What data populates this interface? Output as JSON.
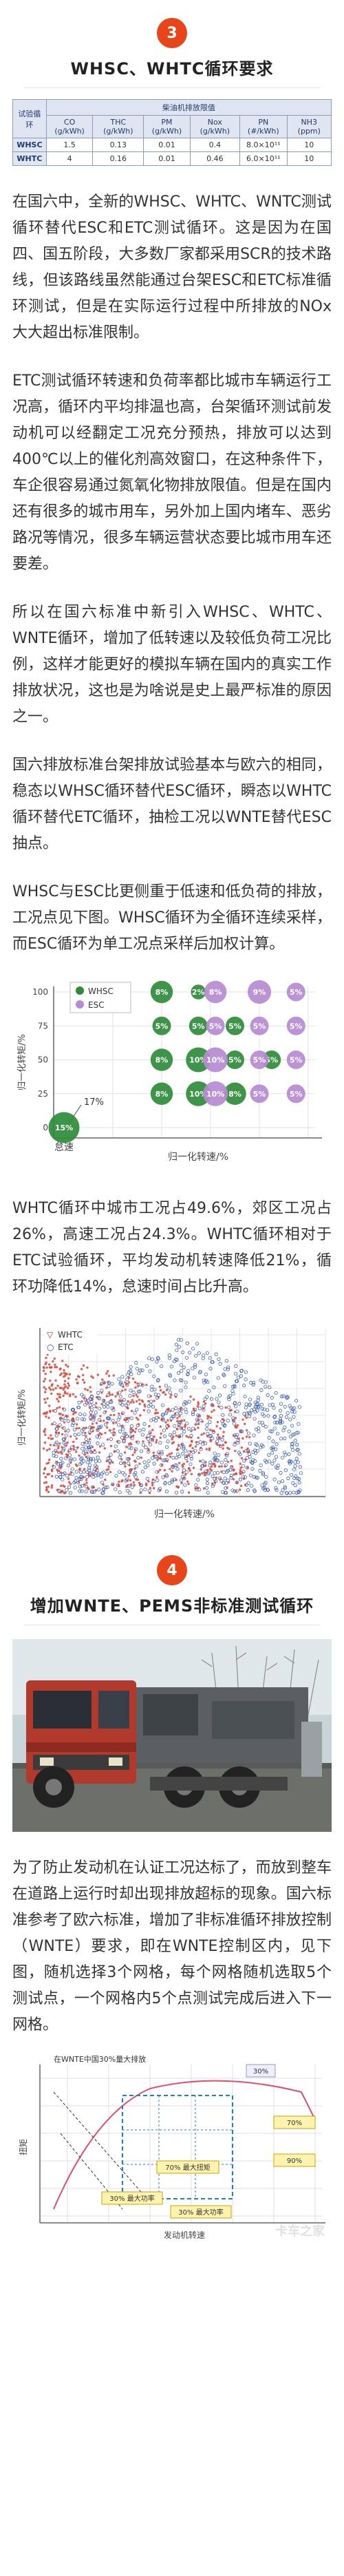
{
  "section3": {
    "number": "3",
    "title": "WHSC、WHTC循环要求"
  },
  "limits_table": {
    "header_main": "柴油机排放限值",
    "col_cycle": "试验循环",
    "columns": [
      "CO (g/kWh)",
      "THC (g/kWh)",
      "PM (g/kWh)",
      "Nox (g/kWh)",
      "PN (#/kWh)",
      "NH3 (ppm)"
    ],
    "rows": [
      {
        "cycle": "WHSC",
        "values": [
          "1.5",
          "0.13",
          "0.01",
          "0.4",
          "8.0×10¹¹",
          "10"
        ]
      },
      {
        "cycle": "WHTC",
        "values": [
          "4",
          "0.16",
          "0.01",
          "0.46",
          "6.0×10¹¹",
          "10"
        ]
      }
    ]
  },
  "para1": "在国六中，全新的WHSC、WHTC、WNTC测试循环替代ESC和ETC测试循环。这是因为在国四、国五阶段，大多数厂家都采用SCR的技术路线，但该路线虽然能通过台架ESC和ETC标准循环测试，但是在实际运行过程中所排放的NOx大大超出标准限制。",
  "para2": "ETC测试循环转速和负荷率都比城市车辆运行工况高，循环内平均排温也高，台架循环测试前发动机可以经翻定工况充分预热，排放可以达到400℃以上的催化剂高效窗口，在这种条件下，车企很容易通过氮氧化物排放限值。但是在国内还有很多的城市用车，另外加上国内堵车、恶劣路况等情况，很多车辆运营状态要比城市用车还要差。",
  "para3": "所以在国六标准中新引入WHSC、WHTC、WNTE循环，增加了低转速以及较低负荷工况比例，这样才能更好的模拟车辆在国内的真实工作排放状况，这也是为啥说是史上最严标准的原因之一。",
  "para4": "国六排放标准台架排放试验基本与欧六的相同，稳态以WHSC循环替代ESC循环，瞬态以WHTC循环替代ETC循环，抽检工况以WNTE替代ESC抽点。",
  "para5": "WHSC与ESC比更侧重于低速和低负荷的排放，工况点见下图。WHSC循环为全循环连续采样，而ESC循环为单工况点采样后加权计算。",
  "chart1": {
    "legend": [
      "WHSC",
      "ESC"
    ],
    "ylabel": "归一化转矩/%",
    "xlabel": "归一化转速/%",
    "idle_label": "怠速",
    "yticks": [
      "0",
      "25",
      "50",
      "75",
      "100"
    ],
    "annot": "17%"
  },
  "chart_data": {
    "type": "scatter",
    "title": "",
    "xlabel": "归一化转速/%",
    "ylabel": "归一化转矩/%",
    "ylim": [
      0,
      100
    ],
    "series": [
      {
        "name": "WHSC",
        "points": [
          {
            "x": 0,
            "y": 0,
            "label": "15%"
          },
          {
            "x": 40,
            "y": 100,
            "label": "8%"
          },
          {
            "x": 40,
            "y": 75,
            "label": "5%"
          },
          {
            "x": 40,
            "y": 50,
            "label": "8%"
          },
          {
            "x": 40,
            "y": 25,
            "label": "8%"
          },
          {
            "x": 55,
            "y": 100,
            "label": "2%"
          },
          {
            "x": 55,
            "y": 75,
            "label": "5%"
          },
          {
            "x": 55,
            "y": 50,
            "label": "10%"
          },
          {
            "x": 55,
            "y": 25,
            "label": "10%"
          },
          {
            "x": 70,
            "y": 75,
            "label": "5%"
          },
          {
            "x": 70,
            "y": 50,
            "label": "5%"
          },
          {
            "x": 70,
            "y": 25,
            "label": "8%"
          },
          {
            "x": 85,
            "y": 50,
            "label": "5%"
          }
        ]
      },
      {
        "name": "ESC",
        "points": [
          {
            "x": 62,
            "y": 100,
            "label": "8%"
          },
          {
            "x": 62,
            "y": 75,
            "label": "5%"
          },
          {
            "x": 62,
            "y": 50,
            "label": "10%"
          },
          {
            "x": 62,
            "y": 25,
            "label": "10%"
          },
          {
            "x": 80,
            "y": 100,
            "label": "9%"
          },
          {
            "x": 80,
            "y": 75,
            "label": "5%"
          },
          {
            "x": 80,
            "y": 50,
            "label": "5%"
          },
          {
            "x": 80,
            "y": 25,
            "label": "5%"
          },
          {
            "x": 95,
            "y": 100,
            "label": "5%"
          },
          {
            "x": 95,
            "y": 75,
            "label": "5%"
          },
          {
            "x": 95,
            "y": 50,
            "label": "5%"
          },
          {
            "x": 95,
            "y": 25,
            "label": "5%"
          }
        ]
      }
    ]
  },
  "para6": "WHTC循环中城市工况占49.6%，郊区工况占26%，高速工况占24.3%。WHTC循环相对于ETC试验循环，平均发动机转速降低21%，循环功降低14%，怠速时间占比升高。",
  "chart2": {
    "legend": [
      "WHTC",
      "ETC"
    ],
    "ylabel": "归一化转矩/%",
    "xlabel": "归一化转速/%"
  },
  "section4": {
    "number": "4",
    "title": "增加WNTE、PEMS非标准测试循环"
  },
  "para7": "为了防止发动机在认证工况达标了，而放到整车在道路上运行时却出现排放超标的现象。国六标准参考了欧六标准，增加了非标准循环排放控制（WNTE）要求，即在WNTE控制区内，见下图，随机选择3个网格，每个网格随机选取5个测试点，一个网格内5个点测试完成后进入下一网格。",
  "chart3": {
    "title": "在WNTE中国30%量大排放",
    "labels": [
      "30%",
      "70%",
      "90%",
      "30% 最大功率",
      "30% 最大功率",
      "70% 最大扭矩"
    ],
    "xlabel": "发动机转速",
    "ylabel": "扭矩"
  },
  "watermark": "卡车之家"
}
